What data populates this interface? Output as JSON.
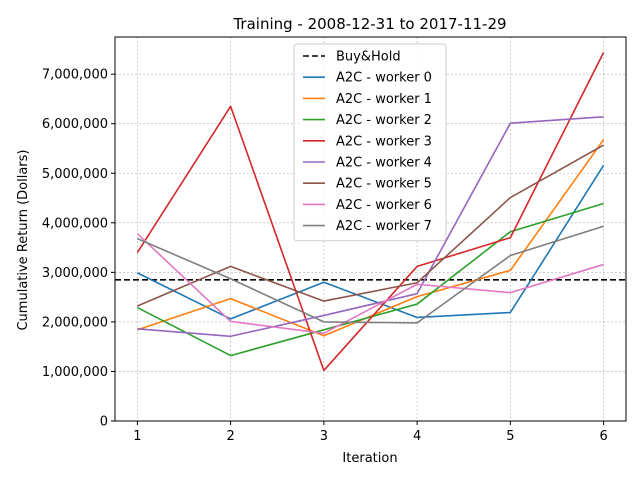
{
  "chart_data": {
    "type": "line",
    "title": "Training - 2008-12-31 to 2017-11-29",
    "xlabel": "Iteration",
    "ylabel": "Cumulative Return (Dollars)",
    "x": [
      1,
      2,
      3,
      4,
      5,
      6
    ],
    "xlim": [
      0.76,
      6.24
    ],
    "ylim": [
      0,
      7750000
    ],
    "x_ticks": [
      1,
      2,
      3,
      4,
      5,
      6
    ],
    "y_ticks": [
      0,
      1000000,
      2000000,
      3000000,
      4000000,
      5000000,
      6000000,
      7000000
    ],
    "y_tick_labels": [
      "0",
      "1,000,000",
      "2,000,000",
      "3,000,000",
      "4,000,000",
      "5,000,000",
      "6,000,000",
      "7,000,000"
    ],
    "grid": true,
    "legend_position": "top-center",
    "baseline": {
      "name": "Buy&Hold",
      "value": 2850000,
      "color": "#000000",
      "style": "dashed"
    },
    "series": [
      {
        "name": "A2C - worker 0",
        "color": "#1f77b4",
        "values": [
          2990000,
          2060000,
          2800000,
          2090000,
          2190000,
          5160000
        ]
      },
      {
        "name": "A2C - worker 1",
        "color": "#ff7f0e",
        "values": [
          1840000,
          2470000,
          1720000,
          2510000,
          3040000,
          5680000
        ]
      },
      {
        "name": "A2C - worker 2",
        "color": "#2ca02c",
        "values": [
          2290000,
          1320000,
          1840000,
          2360000,
          3820000,
          4390000
        ]
      },
      {
        "name": "A2C - worker 3",
        "color": "#d62728",
        "values": [
          3400000,
          6350000,
          1020000,
          3120000,
          3700000,
          7440000
        ]
      },
      {
        "name": "A2C - worker 4",
        "color": "#9467bd",
        "values": [
          1860000,
          1710000,
          2130000,
          2570000,
          6010000,
          6140000
        ]
      },
      {
        "name": "A2C - worker 5",
        "color": "#8c564b",
        "values": [
          2320000,
          3120000,
          2420000,
          2790000,
          4510000,
          5570000
        ]
      },
      {
        "name": "A2C - worker 6",
        "color": "#e377c2",
        "values": [
          3780000,
          2010000,
          1770000,
          2760000,
          2590000,
          3160000
        ]
      },
      {
        "name": "A2C - worker 7",
        "color": "#7f7f7f",
        "values": [
          3680000,
          2870000,
          2000000,
          1980000,
          3340000,
          3930000
        ]
      }
    ]
  }
}
